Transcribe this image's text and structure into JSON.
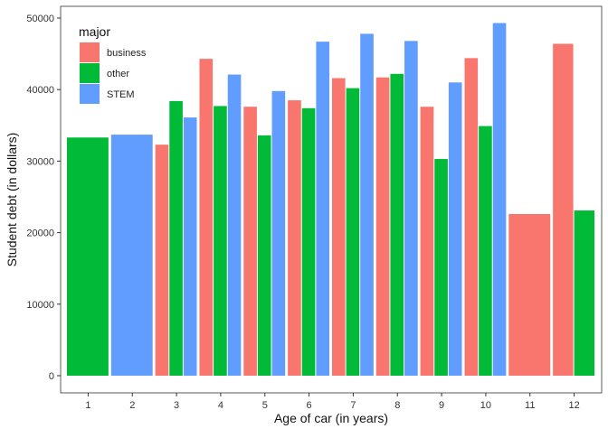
{
  "chart_data": {
    "type": "bar",
    "xlabel": "Age of car (in years)",
    "ylabel": "Student debt (in dollars)",
    "xlim": [
      0.5,
      12.5
    ],
    "ylim": [
      0,
      50000
    ],
    "x_ticks": [
      "1",
      "2",
      "3",
      "4",
      "5",
      "6",
      "7",
      "8",
      "9",
      "10",
      "11",
      "12"
    ],
    "y_ticks": [
      0,
      10000,
      20000,
      30000,
      40000,
      50000
    ],
    "grid": false,
    "legend": {
      "title": "major",
      "position": "top-left-inside",
      "entries": [
        {
          "name": "business",
          "color": "#F8766D"
        },
        {
          "name": "other",
          "color": "#00BA38"
        },
        {
          "name": "STEM",
          "color": "#619CFF"
        }
      ]
    },
    "series": [
      {
        "name": "business",
        "color": "#F8766D",
        "points": [
          [
            3,
            32300
          ],
          [
            4,
            44300
          ],
          [
            5,
            37600
          ],
          [
            6,
            38500
          ],
          [
            7,
            41600
          ],
          [
            8,
            41700
          ],
          [
            9,
            37600
          ],
          [
            10,
            44400
          ],
          [
            11,
            22600
          ],
          [
            12,
            46400
          ]
        ]
      },
      {
        "name": "other",
        "color": "#00BA38",
        "points": [
          [
            1,
            33300
          ],
          [
            3,
            38400
          ],
          [
            4,
            37700
          ],
          [
            5,
            33600
          ],
          [
            6,
            37400
          ],
          [
            7,
            40200
          ],
          [
            8,
            42200
          ],
          [
            9,
            30300
          ],
          [
            10,
            34900
          ],
          [
            12,
            23100
          ]
        ]
      },
      {
        "name": "STEM",
        "color": "#619CFF",
        "points": [
          [
            2,
            33700
          ],
          [
            3,
            36100
          ],
          [
            4,
            42100
          ],
          [
            5,
            39800
          ],
          [
            6,
            46700
          ],
          [
            7,
            47800
          ],
          [
            8,
            46800
          ],
          [
            9,
            41000
          ],
          [
            10,
            49300
          ]
        ]
      }
    ]
  }
}
